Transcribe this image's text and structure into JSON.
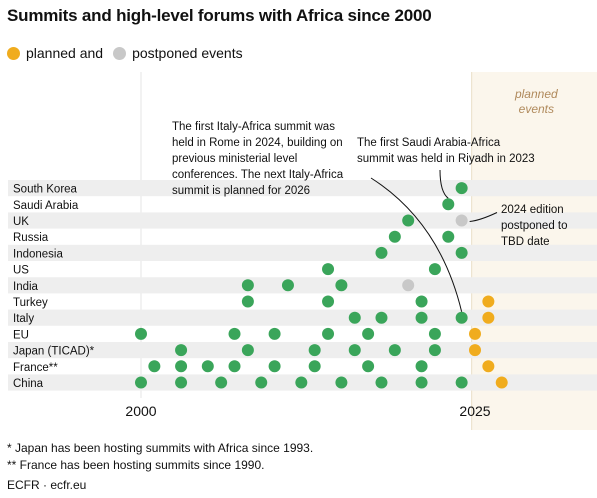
{
  "title": "Summits and high-level forums with Africa since 2000",
  "legend": {
    "planned_label": "planned and",
    "postponed_label": "postponed events"
  },
  "colors": {
    "held": "#3aa55a",
    "planned": "#f0ac1e",
    "postponed": "#c8c8c8",
    "row_band": "#eeeeee",
    "planned_region": "#fbf6ec",
    "planned_text": "#b08a5c"
  },
  "footnotes": [
    "* Japan has been hosting summits with Africa since 1993.",
    "** France has been hosting summits since 1990."
  ],
  "source": "ECFR · ecfr.eu",
  "chart_data": {
    "type": "scatter",
    "title": "Summits and high-level forums with Africa since 2000",
    "x_tick_labels": [
      "2000",
      "2025"
    ],
    "planned_region_label": [
      "planned",
      "events"
    ],
    "xlim": [
      1997,
      2032
    ],
    "rows": [
      {
        "name": "South Korea",
        "held": [
          2024
        ],
        "planned": [],
        "postponed": []
      },
      {
        "name": "Saudi Arabia",
        "held": [
          2023
        ],
        "planned": [],
        "postponed": []
      },
      {
        "name": "UK",
        "held": [
          2020
        ],
        "planned": [],
        "postponed": [
          2024
        ]
      },
      {
        "name": "Russia",
        "held": [
          2019,
          2023
        ],
        "planned": [],
        "postponed": []
      },
      {
        "name": "Indonesia",
        "held": [
          2018,
          2024
        ],
        "planned": [],
        "postponed": []
      },
      {
        "name": "US",
        "held": [
          2014,
          2022
        ],
        "planned": [],
        "postponed": []
      },
      {
        "name": "India",
        "held": [
          2008,
          2011,
          2015
        ],
        "planned": [],
        "postponed": [
          2020
        ]
      },
      {
        "name": "Turkey",
        "held": [
          2008,
          2014,
          2021
        ],
        "planned": [
          2026
        ],
        "postponed": []
      },
      {
        "name": "Italy",
        "held": [
          2016,
          2018,
          2021,
          2024
        ],
        "planned": [
          2026
        ],
        "postponed": []
      },
      {
        "name": "EU",
        "held": [
          2000,
          2007,
          2010,
          2014,
          2017,
          2022
        ],
        "planned": [
          2025
        ],
        "postponed": []
      },
      {
        "name": "Japan (TICAD)*",
        "held": [
          2003,
          2008,
          2013,
          2016,
          2019,
          2022
        ],
        "planned": [
          2025
        ],
        "postponed": []
      },
      {
        "name": "France**",
        "held": [
          2001,
          2003,
          2005,
          2007,
          2010,
          2013,
          2017,
          2021
        ],
        "planned": [
          2026
        ],
        "postponed": []
      },
      {
        "name": "China",
        "held": [
          2000,
          2003,
          2006,
          2009,
          2012,
          2015,
          2018,
          2021,
          2024
        ],
        "planned": [
          2027
        ],
        "postponed": []
      }
    ],
    "annotations": [
      {
        "key": "italy",
        "lines": [
          "The first Italy-Africa summit was",
          "held in Rome in 2024, building on",
          "previous ministerial level",
          "conferences. The next Italy-Africa",
          "summit is planned for 2026"
        ],
        "target_row": "Italy",
        "target_year": 2024
      },
      {
        "key": "saudi",
        "lines": [
          "The first Saudi Arabia-Africa",
          "summit was held in Riyadh in 2023"
        ],
        "target_row": "Saudi Arabia",
        "target_year": 2023
      },
      {
        "key": "uk",
        "lines": [
          "2024 edition",
          "postponed to",
          "TBD date"
        ],
        "target_row": "UK",
        "target_year": 2024
      }
    ]
  }
}
